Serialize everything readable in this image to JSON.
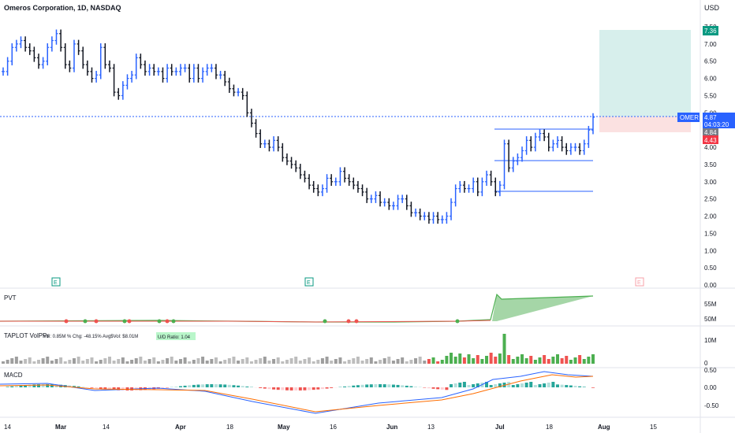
{
  "header": {
    "symbol_title": "Omeros Corporation, 1D, NASDAQ",
    "currency": "USD"
  },
  "price_axis": {
    "ticks": [
      "7.50",
      "7.00",
      "6.50",
      "6.00",
      "5.50",
      "5.00",
      "4.50",
      "4.00",
      "3.50",
      "3.00",
      "2.50",
      "2.00",
      "1.50",
      "1.00",
      "0.50",
      "0.00"
    ]
  },
  "price_labels": {
    "target": "7.36",
    "symbol": "OMER",
    "last": "4.87",
    "countdown": "04:03:20",
    "entry": "4.84",
    "stop": "4.43"
  },
  "time_axis": [
    "14",
    "Mar",
    "14",
    "Apr",
    "18",
    "May",
    "16",
    "Jun",
    "13",
    "Jul",
    "18",
    "Aug",
    "15"
  ],
  "earnings_markers": [
    "E",
    "E",
    "E"
  ],
  "pvt": {
    "label": "PVT",
    "ticks": [
      "55M",
      "50M"
    ]
  },
  "volume": {
    "label": "TAPLOT VolPPr",
    "stats": "Vol: 0.85M  % Chg: -48.15%  Avg$Vol: $8.01M",
    "ratio": "U/D Ratio: 1.04",
    "ticks": [
      "10M",
      "0"
    ]
  },
  "macd": {
    "label": "MACD",
    "ticks": [
      "0.50",
      "0.00",
      "-0.50"
    ]
  },
  "colors": {
    "up": "#2962ff",
    "down": "#131722",
    "accent": "#2962ff",
    "green": "#26a69a",
    "red": "#ef5350",
    "target_zone": "#d7efec",
    "stop_zone": "#fbe1e1"
  },
  "chart_data": {
    "type": "ohlc",
    "x_range": [
      "Feb 14",
      "Aug 15"
    ],
    "y_range": [
      0.0,
      7.5
    ],
    "close_series": [
      6.2,
      6.5,
      6.9,
      7.0,
      7.1,
      6.9,
      6.8,
      6.6,
      6.4,
      6.5,
      6.9,
      7.1,
      7.3,
      6.9,
      6.4,
      6.3,
      7.0,
      6.8,
      6.4,
      6.2,
      6.0,
      6.1,
      6.9,
      6.4,
      6.3,
      5.6,
      5.5,
      5.8,
      6.0,
      6.1,
      6.6,
      6.4,
      6.2,
      6.3,
      6.2,
      6.2,
      6.0,
      6.3,
      6.2,
      6.2,
      6.3,
      6.3,
      6.0,
      6.3,
      6.0,
      6.2,
      6.3,
      6.3,
      6.1,
      6.1,
      5.9,
      5.7,
      5.6,
      5.6,
      5.5,
      5.0,
      4.7,
      4.4,
      4.1,
      4.1,
      4.0,
      4.2,
      4.0,
      3.7,
      3.6,
      3.5,
      3.4,
      3.2,
      3.1,
      2.9,
      2.8,
      2.7,
      2.8,
      3.1,
      3.0,
      3.0,
      3.3,
      3.1,
      3.0,
      2.9,
      2.8,
      2.7,
      2.5,
      2.5,
      2.6,
      2.4,
      2.4,
      2.3,
      2.3,
      2.5,
      2.5,
      2.3,
      2.1,
      2.1,
      2.0,
      2.0,
      1.9,
      2.0,
      1.9,
      1.9,
      2.0,
      2.4,
      2.8,
      2.9,
      2.8,
      2.8,
      3.0,
      2.7,
      3.0,
      3.2,
      3.0,
      2.7,
      2.9,
      4.1,
      3.4,
      3.6,
      3.7,
      3.9,
      4.2,
      4.0,
      4.3,
      4.4,
      4.3,
      4.0,
      4.1,
      4.2,
      4.0,
      3.9,
      4.0,
      4.0,
      3.9,
      4.1,
      4.5,
      4.87
    ],
    "annotations": {
      "box_top": 4.53,
      "box_mid": 3.62,
      "box_bottom": 2.72,
      "last_price": 4.87,
      "target": 7.36,
      "stop": 4.43
    }
  }
}
